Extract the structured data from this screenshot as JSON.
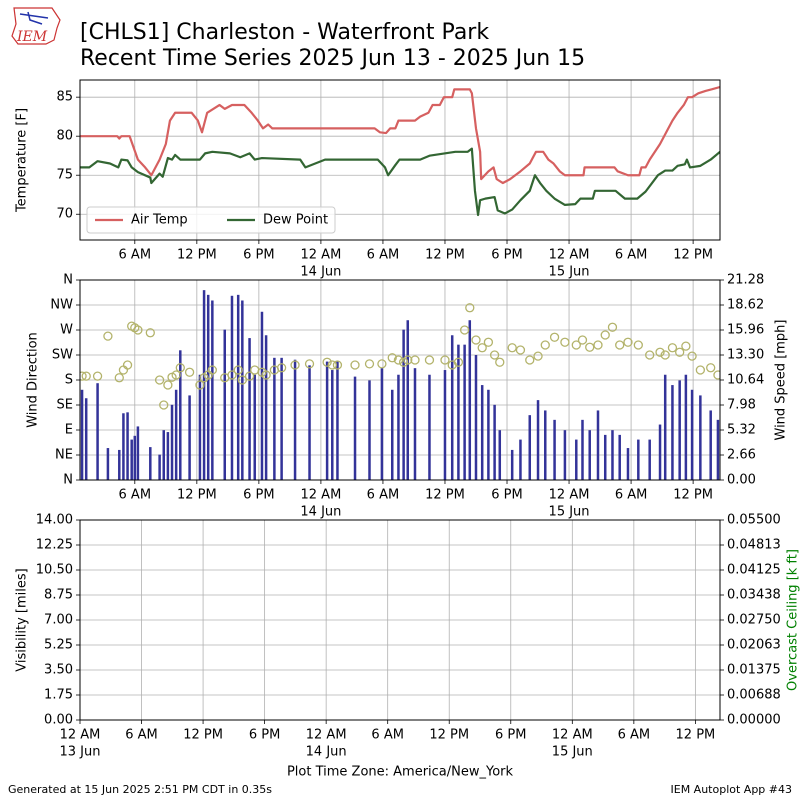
{
  "header": {
    "logo": "IEM",
    "title": "[CHLS1] Charleston - Waterfront Park",
    "subtitle": "Recent Time Series 2025 Jun 13 - 2025 Jun 15"
  },
  "footer": {
    "left": "Generated at 15 Jun 2025 2:51 PM CDT in 0.35s",
    "right": "IEM Autoplot App #43"
  },
  "chart_data": [
    {
      "type": "line",
      "ylabel": "Temperature [F]",
      "grid": true,
      "legend": "lower left",
      "xlim": [
        0.7,
        62.6
      ],
      "ylim": [
        66.7,
        87.2
      ],
      "yticks": [
        70,
        75,
        80,
        85
      ],
      "xticks": [
        {
          "value": 6,
          "label": "6 AM"
        },
        {
          "value": 12,
          "label": "12 PM"
        },
        {
          "value": 18,
          "label": "6 PM"
        },
        {
          "value": 24,
          "label": "12 AM"
        },
        {
          "value": 30,
          "label": "6 AM"
        },
        {
          "value": 36,
          "label": "12 PM"
        },
        {
          "value": 42,
          "label": "6 PM"
        },
        {
          "value": 48,
          "label": "12 AM"
        },
        {
          "value": 54,
          "label": "6 AM"
        },
        {
          "value": 60,
          "label": "12 PM"
        }
      ],
      "xdates": [
        {
          "value": 24,
          "label": "14 Jun"
        },
        {
          "value": 48,
          "label": "15 Jun"
        }
      ],
      "series": [
        {
          "name": "Air Temp",
          "color": "#d66060",
          "x": [
            0.7,
            4.3,
            4.5,
            4.7,
            5.5,
            6.3,
            7.0,
            7.6,
            8.4,
            9.0,
            9.4,
            9.9,
            11.5,
            12.1,
            12.5,
            13.0,
            14.2,
            14.7,
            15.4,
            16.6,
            17.3,
            17.9,
            18.4,
            18.9,
            19.3,
            22.0,
            26.8,
            29.2,
            29.7,
            30.3,
            30.7,
            31.2,
            31.5,
            33.1,
            33.6,
            34.4,
            34.8,
            35.5,
            35.9,
            36.7,
            36.9,
            38.4,
            38.6,
            39.0,
            39.4,
            39.5,
            40.2,
            40.7,
            41.0,
            41.6,
            42.3,
            43.3,
            44.2,
            44.8,
            45.5,
            46.0,
            46.5,
            47.1,
            47.6,
            49.4,
            49.5,
            52.4,
            52.7,
            53.7,
            54.8,
            55.0,
            55.4,
            55.8,
            56.8,
            57.6,
            58.0,
            58.5,
            59.1,
            59.5,
            59.9,
            60.5,
            61.2,
            61.8,
            62.6
          ],
          "values": [
            80,
            80,
            79.7,
            80,
            80,
            77,
            76,
            75,
            77,
            79,
            82,
            83,
            83,
            82,
            80.5,
            83,
            84,
            83.5,
            84,
            84,
            83,
            82,
            81,
            81.5,
            81,
            81,
            81,
            81,
            80.5,
            80.4,
            81,
            81,
            82,
            82,
            82.5,
            83,
            84,
            84,
            85,
            85,
            86,
            86,
            85.5,
            81,
            78,
            74.5,
            75.5,
            76,
            74.5,
            74,
            74.5,
            75.5,
            76.5,
            78,
            78,
            77,
            76.5,
            75.5,
            75,
            75,
            76,
            76,
            75.5,
            75,
            75,
            76,
            76,
            77,
            79,
            81,
            82,
            83,
            84,
            85,
            85,
            85.5,
            85.8,
            86,
            86.3
          ]
        },
        {
          "name": "Dew Point",
          "color": "#336633",
          "x": [
            0.7,
            1.6,
            2.4,
            3.6,
            4.4,
            4.7,
            5.3,
            5.7,
            6.3,
            7.5,
            7.6,
            8.4,
            8.7,
            9.2,
            9.6,
            9.9,
            10.4,
            12.3,
            12.8,
            13.5,
            15.2,
            16.2,
            17.1,
            17.6,
            18.3,
            22.0,
            22.5,
            24.4,
            29.5,
            30.2,
            30.5,
            31.2,
            31.6,
            33.6,
            34.5,
            37.0,
            38.2,
            38.6,
            38.9,
            39.2,
            39.4,
            39.9,
            40.8,
            41.1,
            41.8,
            42.5,
            43.3,
            44.2,
            44.7,
            45.2,
            45.8,
            46.6,
            47.6,
            48.6,
            49.1,
            50.3,
            50.5,
            52.5,
            53.4,
            54.6,
            55.4,
            56.6,
            57.3,
            58.0,
            58.5,
            59.2,
            59.4,
            59.7,
            60.7,
            61.7,
            62.6
          ],
          "values": [
            76,
            76,
            76.8,
            76.5,
            76,
            77,
            76.9,
            76,
            75.4,
            74.7,
            74,
            75.2,
            74.8,
            77.2,
            77,
            77.6,
            77,
            77,
            77.8,
            78,
            77.8,
            77.3,
            77.8,
            77,
            77.2,
            77,
            76,
            77,
            77,
            76,
            75,
            76.3,
            77,
            77,
            77.5,
            78,
            78,
            78.4,
            73,
            69.9,
            71.8,
            72,
            72.2,
            70.5,
            70.1,
            70.6,
            71.8,
            73,
            75,
            74,
            73,
            72,
            71.2,
            71.3,
            72,
            72,
            73,
            73,
            72,
            72,
            72.9,
            75,
            75.6,
            75.6,
            76.2,
            76.4,
            77,
            76,
            76.2,
            77,
            78
          ]
        }
      ]
    },
    {
      "type": "combo",
      "ylabel": "Wind Direction",
      "y2label": "Wind Speed [mph]",
      "grid": true,
      "xlim": [
        0.7,
        62.6
      ],
      "ylim": [
        0,
        360
      ],
      "y2lim": [
        0,
        21.28
      ],
      "yticks": [
        {
          "value": 0,
          "label": "N"
        },
        {
          "value": 45,
          "label": "NE"
        },
        {
          "value": 90,
          "label": "E"
        },
        {
          "value": 135,
          "label": "SE"
        },
        {
          "value": 180,
          "label": "S"
        },
        {
          "value": 225,
          "label": "SW"
        },
        {
          "value": 270,
          "label": "W"
        },
        {
          "value": 315,
          "label": "NW"
        },
        {
          "value": 360,
          "label": "N"
        }
      ],
      "y2ticks": [
        {
          "value": 0,
          "label": "0.00"
        },
        2.66,
        5.32,
        7.98,
        10.64,
        {
          "value": 13.3,
          "label": "13.30"
        },
        15.96,
        18.62,
        21.28
      ],
      "xticks": [
        {
          "value": 6,
          "label": "6 AM"
        },
        {
          "value": 12,
          "label": "12 PM"
        },
        {
          "value": 18,
          "label": "6 PM"
        },
        {
          "value": 24,
          "label": "12 AM"
        },
        {
          "value": 30,
          "label": "6 AM"
        },
        {
          "value": 36,
          "label": "12 PM"
        },
        {
          "value": 42,
          "label": "6 PM"
        },
        {
          "value": 48,
          "label": "12 AM"
        },
        {
          "value": 54,
          "label": "6 AM"
        },
        {
          "value": 60,
          "label": "12 PM"
        }
      ],
      "xdates": [
        {
          "value": 24,
          "label": "14 Jun"
        },
        {
          "value": 48,
          "label": "15 Jun"
        }
      ],
      "x": [
        0.9,
        1.3,
        2.4,
        3.4,
        4.5,
        4.9,
        5.3,
        5.7,
        6.0,
        6.3,
        7.5,
        8.4,
        8.8,
        9.2,
        9.6,
        10.0,
        10.4,
        11.3,
        12.3,
        12.7,
        13.1,
        13.5,
        14.7,
        15.4,
        16.0,
        16.4,
        17.1,
        17.6,
        18.3,
        18.7,
        19.5,
        20.2,
        21.5,
        22.9,
        24.6,
        25.1,
        25.6,
        27.3,
        28.7,
        29.9,
        30.9,
        31.5,
        32.0,
        32.4,
        33.1,
        34.5,
        36.0,
        36.7,
        37.3,
        37.9,
        38.4,
        39.0,
        39.6,
        40.2,
        40.8,
        41.3,
        42.5,
        43.3,
        44.2,
        45.0,
        45.7,
        46.6,
        47.6,
        48.7,
        49.3,
        50.0,
        50.8,
        51.5,
        52.2,
        52.9,
        53.7,
        54.7,
        55.8,
        56.8,
        57.3,
        58.0,
        58.7,
        59.3,
        59.9,
        60.7,
        61.7,
        62.4
      ],
      "series": [
        {
          "type": "bar",
          "axis": "y2",
          "color": "#333399",
          "values": [
            9.6,
            8.7,
            10.3,
            3.4,
            3.2,
            7.1,
            7.2,
            4.3,
            4.7,
            5.7,
            3.5,
            2.7,
            5.3,
            5.1,
            8.0,
            9.6,
            13.8,
            9.0,
            11.2,
            20.2,
            19.7,
            19.1,
            16.0,
            19.6,
            19.7,
            19.1,
            15.1,
            11.2,
            17.9,
            15.4,
            13.0,
            13.0,
            12.8,
            12.2,
            12.6,
            11.7,
            12.6,
            11.0,
            10.6,
            11.9,
            9.6,
            11.2,
            16.0,
            17.0,
            11.9,
            11.2,
            11.7,
            15.4,
            14.4,
            14.4,
            17.0,
            13.3,
            10.1,
            9.6,
            8.0,
            5.3,
            3.2,
            4.3,
            6.9,
            8.5,
            7.4,
            6.4,
            5.3,
            4.3,
            6.4,
            5.3,
            7.4,
            4.8,
            5.3,
            4.8,
            3.4,
            4.3,
            4.3,
            5.9,
            11.2,
            10.1,
            10.6,
            11.2,
            9.6,
            9.0,
            7.4,
            6.4
          ]
        },
        {
          "type": "scatter",
          "color": "#b3b36b",
          "values": [
            187,
            187,
            187,
            259,
            184,
            198,
            207,
            277,
            274,
            270,
            265,
            180,
            135,
            171,
            185,
            189,
            202,
            194,
            171,
            184,
            189,
            198,
            184,
            189,
            198,
            180,
            187,
            198,
            194,
            189,
            198,
            202,
            207,
            209,
            212,
            207,
            207,
            207,
            209,
            209,
            220,
            216,
            212,
            216,
            216,
            216,
            216,
            207,
            212,
            270,
            310,
            252,
            238,
            248,
            225,
            212,
            238,
            234,
            216,
            223,
            243,
            257,
            248,
            243,
            252,
            239,
            243,
            261,
            275,
            243,
            248,
            243,
            225,
            230,
            225,
            238,
            230,
            241,
            223,
            198,
            202,
            189
          ]
        }
      ]
    },
    {
      "type": "line",
      "ylabel": "Visibility [miles]",
      "y2label": "Overcast Ceiling [k ft]",
      "y2label_color": "#008000",
      "xlabel": "Plot Time Zone: America/New_York",
      "grid": true,
      "xlim": [
        0,
        62.4
      ],
      "ylim": [
        0,
        14
      ],
      "y2lim": [
        0,
        0.055
      ],
      "yticks": [
        {
          "value": 0,
          "label": "0.00"
        },
        1.75,
        {
          "value": 3.5,
          "label": "3.50"
        },
        5.25,
        {
          "value": 7,
          "label": "7.00"
        },
        8.75,
        {
          "value": 10.5,
          "label": "10.50"
        },
        12.25,
        {
          "value": 14,
          "label": "14.00"
        }
      ],
      "y2ticks": [
        {
          "value": 0,
          "label": "0.00000"
        },
        {
          "value": 0.006875,
          "label": "0.00688"
        },
        0.01375,
        {
          "value": 0.020625,
          "label": "0.02063"
        },
        {
          "value": 0.0275,
          "label": "0.02750"
        },
        {
          "value": 0.034375,
          "label": "0.03438"
        },
        0.04125,
        {
          "value": 0.048125,
          "label": "0.04813"
        },
        {
          "value": 0.055,
          "label": "0.05500"
        }
      ],
      "xticks": [
        {
          "value": 0,
          "label": "12 AM"
        },
        {
          "value": 6,
          "label": "6 AM"
        },
        {
          "value": 12,
          "label": "12 PM"
        },
        {
          "value": 18,
          "label": "6 PM"
        },
        {
          "value": 24,
          "label": "12 AM"
        },
        {
          "value": 30,
          "label": "6 AM"
        },
        {
          "value": 36,
          "label": "12 PM"
        },
        {
          "value": 42,
          "label": "6 PM"
        },
        {
          "value": 48,
          "label": "12 AM"
        },
        {
          "value": 54,
          "label": "6 AM"
        },
        {
          "value": 60,
          "label": "12 PM"
        }
      ],
      "xdates": [
        {
          "value": 0,
          "label": "13 Jun"
        },
        {
          "value": 24,
          "label": "14 Jun"
        },
        {
          "value": 48,
          "label": "15 Jun"
        }
      ],
      "series": []
    }
  ]
}
